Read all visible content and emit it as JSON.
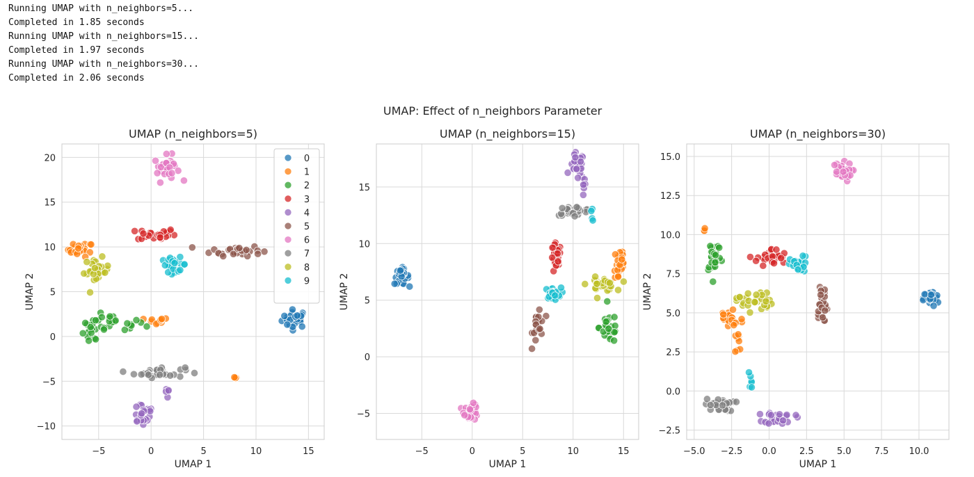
{
  "log_lines": [
    "Running UMAP with n_neighbors=5...",
    "Completed in 1.85 seconds",
    "Running UMAP with n_neighbors=15...",
    "Completed in 1.97 seconds",
    "Running UMAP with n_neighbors=30...",
    "Completed in 2.06 seconds"
  ],
  "figure_title": "UMAP: Effect of n_neighbors Parameter",
  "palette": [
    "#1f77b4",
    "#ff7f0e",
    "#2ca02c",
    "#d62728",
    "#9467bd",
    "#8c564b",
    "#e377c2",
    "#7f7f7f",
    "#bcbd22",
    "#17becf"
  ],
  "chart_data": [
    {
      "type": "scatter",
      "title": "UMAP (n_neighbors=5)",
      "xlabel": "UMAP 1",
      "ylabel": "UMAP 2",
      "xlim": [
        -8.5,
        16.5
      ],
      "ylim": [
        -11.5,
        21.5
      ],
      "xticks": [
        -5,
        0,
        5,
        10,
        15
      ],
      "yticks": [
        -10,
        -5,
        0,
        5,
        10,
        15,
        20
      ],
      "grid": true,
      "legend": {
        "position": "top-right",
        "labels": [
          "0",
          "1",
          "2",
          "3",
          "4",
          "5",
          "6",
          "7",
          "8",
          "9"
        ]
      },
      "clusters": [
        {
          "label": "0",
          "cx": 13.7,
          "cy": 2.0,
          "sx": 0.6,
          "sy": 0.5,
          "n": 30
        },
        {
          "label": "1",
          "cx": -6.7,
          "cy": 9.7,
          "sx": 0.6,
          "sy": 0.4,
          "n": 22
        },
        {
          "label": "1",
          "cx": 0.5,
          "cy": 1.7,
          "sx": 0.6,
          "sy": 0.2,
          "n": 10
        },
        {
          "label": "1",
          "cx": 7.9,
          "cy": -4.6,
          "sx": 0.15,
          "sy": 0.15,
          "n": 3
        },
        {
          "label": "2",
          "cx": -3.8,
          "cy": 1.4,
          "sx": 1.6,
          "sy": 0.5,
          "n": 26
        },
        {
          "label": "2",
          "cx": -5.8,
          "cy": 0.2,
          "sx": 0.4,
          "sy": 0.6,
          "n": 12
        },
        {
          "label": "3",
          "cx": 0.5,
          "cy": 11.4,
          "sx": 0.9,
          "sy": 0.35,
          "n": 28
        },
        {
          "label": "4",
          "cx": -0.8,
          "cy": -8.5,
          "sx": 0.6,
          "sy": 0.8,
          "n": 22
        },
        {
          "label": "4",
          "cx": 1.6,
          "cy": -6.3,
          "sx": 0.2,
          "sy": 0.4,
          "n": 5
        },
        {
          "label": "5",
          "cx": 8.1,
          "cy": 9.6,
          "sx": 1.2,
          "sy": 0.3,
          "n": 30
        },
        {
          "label": "6",
          "cx": 1.5,
          "cy": 18.8,
          "sx": 0.6,
          "sy": 0.7,
          "n": 30
        },
        {
          "label": "7",
          "cx": 0.8,
          "cy": -4.0,
          "sx": 1.2,
          "sy": 0.3,
          "n": 30
        },
        {
          "label": "8",
          "cx": -5.2,
          "cy": 7.3,
          "sx": 0.6,
          "sy": 0.7,
          "n": 26
        },
        {
          "label": "9",
          "cx": 2.2,
          "cy": 8.0,
          "sx": 0.6,
          "sy": 0.4,
          "n": 26
        }
      ]
    },
    {
      "type": "scatter",
      "title": "UMAP (n_neighbors=15)",
      "xlabel": "UMAP 1",
      "ylabel": "UMAP 2",
      "xlim": [
        -9.5,
        16.5
      ],
      "ylim": [
        -7.3,
        18.8
      ],
      "xticks": [
        -5,
        0,
        5,
        10,
        15
      ],
      "yticks": [
        -5,
        0,
        5,
        10,
        15
      ],
      "grid": true,
      "clusters": [
        {
          "label": "0",
          "cx": -7.0,
          "cy": 7.1,
          "sx": 0.35,
          "sy": 0.35,
          "n": 30
        },
        {
          "label": "1",
          "cx": 14.6,
          "cy": 8.2,
          "sx": 0.3,
          "sy": 1.0,
          "n": 24
        },
        {
          "label": "2",
          "cx": 13.6,
          "cy": 2.6,
          "sx": 0.5,
          "sy": 0.7,
          "n": 26
        },
        {
          "label": "3",
          "cx": 8.3,
          "cy": 8.6,
          "sx": 0.25,
          "sy": 0.7,
          "n": 28
        },
        {
          "label": "4",
          "cx": 10.4,
          "cy": 16.8,
          "sx": 0.35,
          "sy": 0.6,
          "n": 26
        },
        {
          "label": "4",
          "cx": 11.1,
          "cy": 14.7,
          "sx": 0.12,
          "sy": 0.4,
          "n": 6
        },
        {
          "label": "5",
          "cx": 6.6,
          "cy": 3.0,
          "sx": 0.3,
          "sy": 0.9,
          "n": 22
        },
        {
          "label": "6",
          "cx": -0.1,
          "cy": -4.9,
          "sx": 0.35,
          "sy": 0.35,
          "n": 30
        },
        {
          "label": "7",
          "cx": 10.1,
          "cy": 12.9,
          "sx": 0.9,
          "sy": 0.2,
          "n": 28
        },
        {
          "label": "8",
          "cx": 12.8,
          "cy": 6.4,
          "sx": 0.7,
          "sy": 0.3,
          "n": 28
        },
        {
          "label": "9",
          "cx": 8.0,
          "cy": 5.6,
          "sx": 0.4,
          "sy": 0.25,
          "n": 26
        },
        {
          "label": "9",
          "cx": 11.9,
          "cy": 12.5,
          "sx": 0.1,
          "sy": 0.4,
          "n": 4
        }
      ]
    },
    {
      "type": "scatter",
      "title": "UMAP (n_neighbors=30)",
      "xlabel": "UMAP 1",
      "ylabel": "UMAP 2",
      "xlim": [
        -5.5,
        12.0
      ],
      "ylim": [
        -3.1,
        15.8
      ],
      "xticks": [
        -5.0,
        -2.5,
        0.0,
        2.5,
        5.0,
        7.5,
        10.0
      ],
      "yticks": [
        -2.5,
        0.0,
        2.5,
        5.0,
        7.5,
        10.0,
        12.5,
        15.0
      ],
      "grid": true,
      "clusters": [
        {
          "label": "0",
          "cx": 10.8,
          "cy": 5.9,
          "sx": 0.25,
          "sy": 0.25,
          "n": 30
        },
        {
          "label": "1",
          "cx": -2.6,
          "cy": 4.6,
          "sx": 0.45,
          "sy": 0.45,
          "n": 22
        },
        {
          "label": "1",
          "cx": -2.0,
          "cy": 3.0,
          "sx": 0.15,
          "sy": 0.5,
          "n": 8
        },
        {
          "label": "1",
          "cx": -4.3,
          "cy": 10.4,
          "sx": 0.1,
          "sy": 0.1,
          "n": 3
        },
        {
          "label": "2",
          "cx": -3.7,
          "cy": 8.7,
          "sx": 0.25,
          "sy": 0.6,
          "n": 26
        },
        {
          "label": "3",
          "cx": 0.2,
          "cy": 8.5,
          "sx": 0.5,
          "sy": 0.3,
          "n": 28
        },
        {
          "label": "4",
          "cx": 0.7,
          "cy": -1.7,
          "sx": 0.5,
          "sy": 0.2,
          "n": 28
        },
        {
          "label": "5",
          "cx": 3.5,
          "cy": 5.6,
          "sx": 0.2,
          "sy": 0.8,
          "n": 26
        },
        {
          "label": "6",
          "cx": 4.8,
          "cy": 14.0,
          "sx": 0.35,
          "sy": 0.3,
          "n": 30
        },
        {
          "label": "7",
          "cx": -3.3,
          "cy": -0.9,
          "sx": 0.5,
          "sy": 0.2,
          "n": 28
        },
        {
          "label": "8",
          "cx": -1.0,
          "cy": 5.8,
          "sx": 0.6,
          "sy": 0.35,
          "n": 28
        },
        {
          "label": "9",
          "cx": 2.0,
          "cy": 8.0,
          "sx": 0.3,
          "sy": 0.3,
          "n": 26
        },
        {
          "label": "9",
          "cx": -1.2,
          "cy": 0.7,
          "sx": 0.15,
          "sy": 0.3,
          "n": 6
        }
      ]
    }
  ]
}
